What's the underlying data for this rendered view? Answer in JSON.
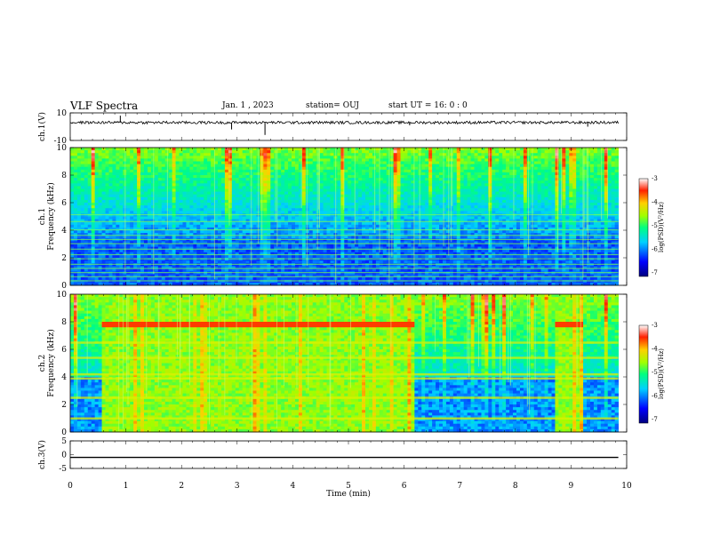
{
  "header": {
    "title": "VLF Spectra",
    "date": "Jan. 1 , 2023",
    "station": "station= OUJ",
    "start": "start UT = 16: 0 : 0"
  },
  "chart_data": [
    {
      "type": "line",
      "ylabel": "ch.1(V)",
      "ylim": [
        -10,
        10
      ],
      "yticks": [
        "10",
        "-10"
      ],
      "xlim": [
        0,
        10
      ],
      "description_note": "",
      "series": [
        {
          "baseline": 3,
          "noise_amplitude": 1,
          "color": "#000000"
        }
      ],
      "spikes": [
        {
          "x": 0.9,
          "y": 8
        },
        {
          "x": 2.9,
          "y": -2
        },
        {
          "x": 3.5,
          "y": -6
        },
        {
          "x": 4.3,
          "y": 2
        },
        {
          "x": 6.1,
          "y": 1
        },
        {
          "x": 9.3,
          "y": 0
        }
      ]
    },
    {
      "type": "heatmap",
      "ylabel": [
        "ch.1",
        "Frequency (kHz)"
      ],
      "ylim": [
        0,
        10
      ],
      "yticks": [
        "0",
        "2",
        "4",
        "6",
        "8",
        "10"
      ],
      "xlim": [
        0,
        9.85
      ],
      "colorbar": {
        "label": "log(PSD)(V²/Hz)",
        "range": [
          -7,
          -3
        ],
        "ticks": [
          "-3",
          "-4",
          "-5",
          "-6",
          "-7"
        ]
      },
      "segments": [
        {
          "t": [
            0,
            9.85
          ],
          "high_band": false
        }
      ],
      "tone_lines_khz": [
        0.3,
        0.6,
        0.9,
        1.2,
        1.5,
        1.9,
        2.2,
        2.6,
        3.0,
        3.3,
        3.6,
        4.0,
        4.6,
        5.1
      ]
    },
    {
      "type": "heatmap",
      "ylabel": [
        "ch.2",
        "Frequency (kHz)"
      ],
      "ylim": [
        0,
        10
      ],
      "yticks": [
        "0",
        "2",
        "4",
        "6",
        "8",
        "10"
      ],
      "xlim": [
        0,
        9.85
      ],
      "colorbar": {
        "label": "log(PSD)(V²/Hz)",
        "range": [
          -7,
          -3
        ],
        "ticks": [
          "-3",
          "-4",
          "-5",
          "-6",
          "-7"
        ]
      },
      "segments": [
        {
          "t": [
            0,
            0.55
          ],
          "level": "low"
        },
        {
          "t": [
            0.55,
            6.2
          ],
          "level": "high",
          "red_line_khz": 7.8
        },
        {
          "t": [
            6.2,
            8.7
          ],
          "level": "low"
        },
        {
          "t": [
            8.7,
            9.25
          ],
          "level": "high",
          "red_line_khz": 7.8
        },
        {
          "t": [
            9.25,
            9.85
          ],
          "level": "low"
        }
      ],
      "bands_khz": [
        1.0,
        2.5,
        3.9,
        4.2,
        5.4,
        6.5
      ]
    },
    {
      "type": "line",
      "ylabel": "ch.3(V)",
      "ylim": [
        -5,
        5
      ],
      "yticks": [
        "5",
        "0",
        "-5"
      ],
      "xlim": [
        0,
        10
      ],
      "series": [
        {
          "constant": -1,
          "x_range": [
            0,
            9.85
          ],
          "color": "#000000"
        }
      ],
      "xlabel": "Time (min)",
      "xticks": [
        "0",
        "1",
        "2",
        "3",
        "4",
        "5",
        "6",
        "7",
        "8",
        "9",
        "10"
      ]
    }
  ]
}
